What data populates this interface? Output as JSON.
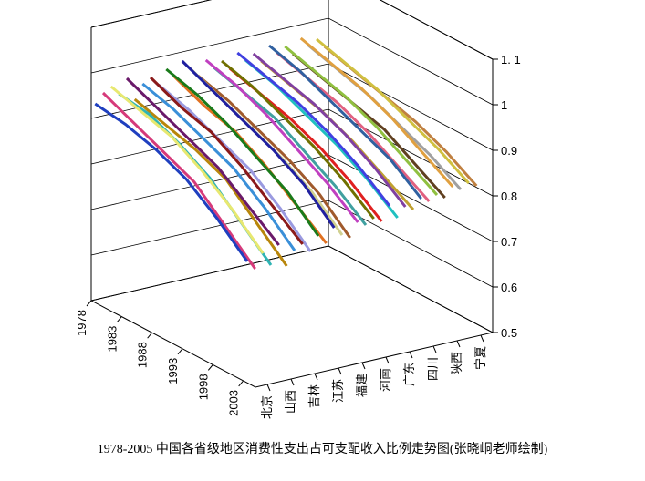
{
  "chart_data": {
    "type": "line",
    "title": "1978-2005 中国各省级地区消费性支出占可支配收入比例走势图(张晓峒老师绘制)",
    "xlabel": "",
    "ylabel": "",
    "ylim": [
      0.5,
      1.1
    ],
    "y_ticks": [
      "0.5",
      "0.6",
      "0.7",
      "0.8",
      "0.9",
      "1",
      "1. 1"
    ],
    "y_tick_values": [
      0.5,
      0.6,
      0.7,
      0.8,
      0.9,
      1.0,
      1.1
    ],
    "year_ticks": [
      "1978",
      "1983",
      "1988",
      "1993",
      "1998",
      "2003"
    ],
    "years": [
      1978,
      1983,
      1988,
      1993,
      1998,
      2003
    ],
    "category_ticks": [
      "北京",
      "山西",
      "吉林",
      "江苏",
      "福建",
      "河南",
      "广东",
      "四川",
      "陕西",
      "宁夏"
    ],
    "grid": true,
    "projection": "3d",
    "series_note": "30 provincial series, one per depth slot",
    "series": [
      {
        "color": "#1f3fbf",
        "values": [
          0.93,
          0.92,
          0.9,
          0.87,
          0.82,
          0.76
        ]
      },
      {
        "color": "#d63a7a",
        "values": [
          0.95,
          0.92,
          0.89,
          0.86,
          0.8,
          0.74
        ]
      },
      {
        "color": "#e8e870",
        "values": [
          0.96,
          0.94,
          0.92,
          0.88,
          0.83,
          0.77
        ]
      },
      {
        "color": "#2fb4b4",
        "values": [
          0.94,
          0.93,
          0.9,
          0.86,
          0.8,
          0.74
        ]
      },
      {
        "color": "#6a1a6a",
        "values": [
          0.97,
          0.94,
          0.91,
          0.88,
          0.83,
          0.78
        ]
      },
      {
        "color": "#b8860b",
        "values": [
          0.92,
          0.9,
          0.88,
          0.85,
          0.79,
          0.73
        ]
      },
      {
        "color": "#3a8fd8",
        "values": [
          0.95,
          0.93,
          0.9,
          0.87,
          0.82,
          0.76
        ]
      },
      {
        "color": "#8b1a1a",
        "values": [
          0.96,
          0.93,
          0.91,
          0.87,
          0.82,
          0.77
        ]
      },
      {
        "color": "#9a9ae0",
        "values": [
          0.94,
          0.92,
          0.89,
          0.86,
          0.81,
          0.75
        ]
      },
      {
        "color": "#1a7a1a",
        "values": [
          0.97,
          0.95,
          0.92,
          0.88,
          0.84,
          0.78
        ]
      },
      {
        "color": "#e07020",
        "values": [
          0.95,
          0.92,
          0.9,
          0.86,
          0.81,
          0.76
        ]
      },
      {
        "color": "#2020a0",
        "values": [
          0.98,
          0.95,
          0.92,
          0.89,
          0.85,
          0.79
        ]
      },
      {
        "color": "#d0d090",
        "values": [
          0.96,
          0.93,
          0.9,
          0.87,
          0.83,
          0.77
        ]
      },
      {
        "color": "#a05a2c",
        "values": [
          0.94,
          0.92,
          0.89,
          0.86,
          0.82,
          0.76
        ]
      },
      {
        "color": "#c040c0",
        "values": [
          0.97,
          0.95,
          0.92,
          0.88,
          0.84,
          0.79
        ]
      },
      {
        "color": "#40a0a0",
        "values": [
          0.95,
          0.93,
          0.91,
          0.87,
          0.83,
          0.78
        ]
      },
      {
        "color": "#707000",
        "values": [
          0.96,
          0.94,
          0.91,
          0.88,
          0.84,
          0.79
        ]
      },
      {
        "color": "#e02020",
        "values": [
          0.94,
          0.92,
          0.9,
          0.87,
          0.83,
          0.78
        ]
      },
      {
        "color": "#4040e0",
        "values": [
          0.97,
          0.95,
          0.93,
          0.9,
          0.86,
          0.81
        ]
      },
      {
        "color": "#20c0c0",
        "values": [
          0.95,
          0.93,
          0.9,
          0.87,
          0.83,
          0.78
        ]
      },
      {
        "color": "#8040a0",
        "values": [
          0.96,
          0.94,
          0.92,
          0.89,
          0.85,
          0.8
        ]
      },
      {
        "color": "#c0a030",
        "values": [
          0.94,
          0.92,
          0.9,
          0.87,
          0.83,
          0.79
        ]
      },
      {
        "color": "#3060a0",
        "values": [
          0.97,
          0.95,
          0.92,
          0.89,
          0.86,
          0.81
        ]
      },
      {
        "color": "#e06080",
        "values": [
          0.95,
          0.93,
          0.91,
          0.88,
          0.84,
          0.8
        ]
      },
      {
        "color": "#90c040",
        "values": [
          0.96,
          0.94,
          0.92,
          0.89,
          0.85,
          0.81
        ]
      },
      {
        "color": "#604020",
        "values": [
          0.94,
          0.92,
          0.9,
          0.88,
          0.84,
          0.8
        ]
      },
      {
        "color": "#e0a040",
        "values": [
          0.97,
          0.95,
          0.93,
          0.9,
          0.86,
          0.82
        ]
      },
      {
        "color": "#a0a0a0",
        "values": [
          0.95,
          0.93,
          0.91,
          0.88,
          0.85,
          0.81
        ]
      },
      {
        "color": "#d0c040",
        "values": [
          0.96,
          0.94,
          0.92,
          0.89,
          0.86,
          0.82
        ]
      },
      {
        "color": "#c08040",
        "values": [
          0.94,
          0.92,
          0.9,
          0.88,
          0.85,
          0.81
        ]
      }
    ]
  }
}
